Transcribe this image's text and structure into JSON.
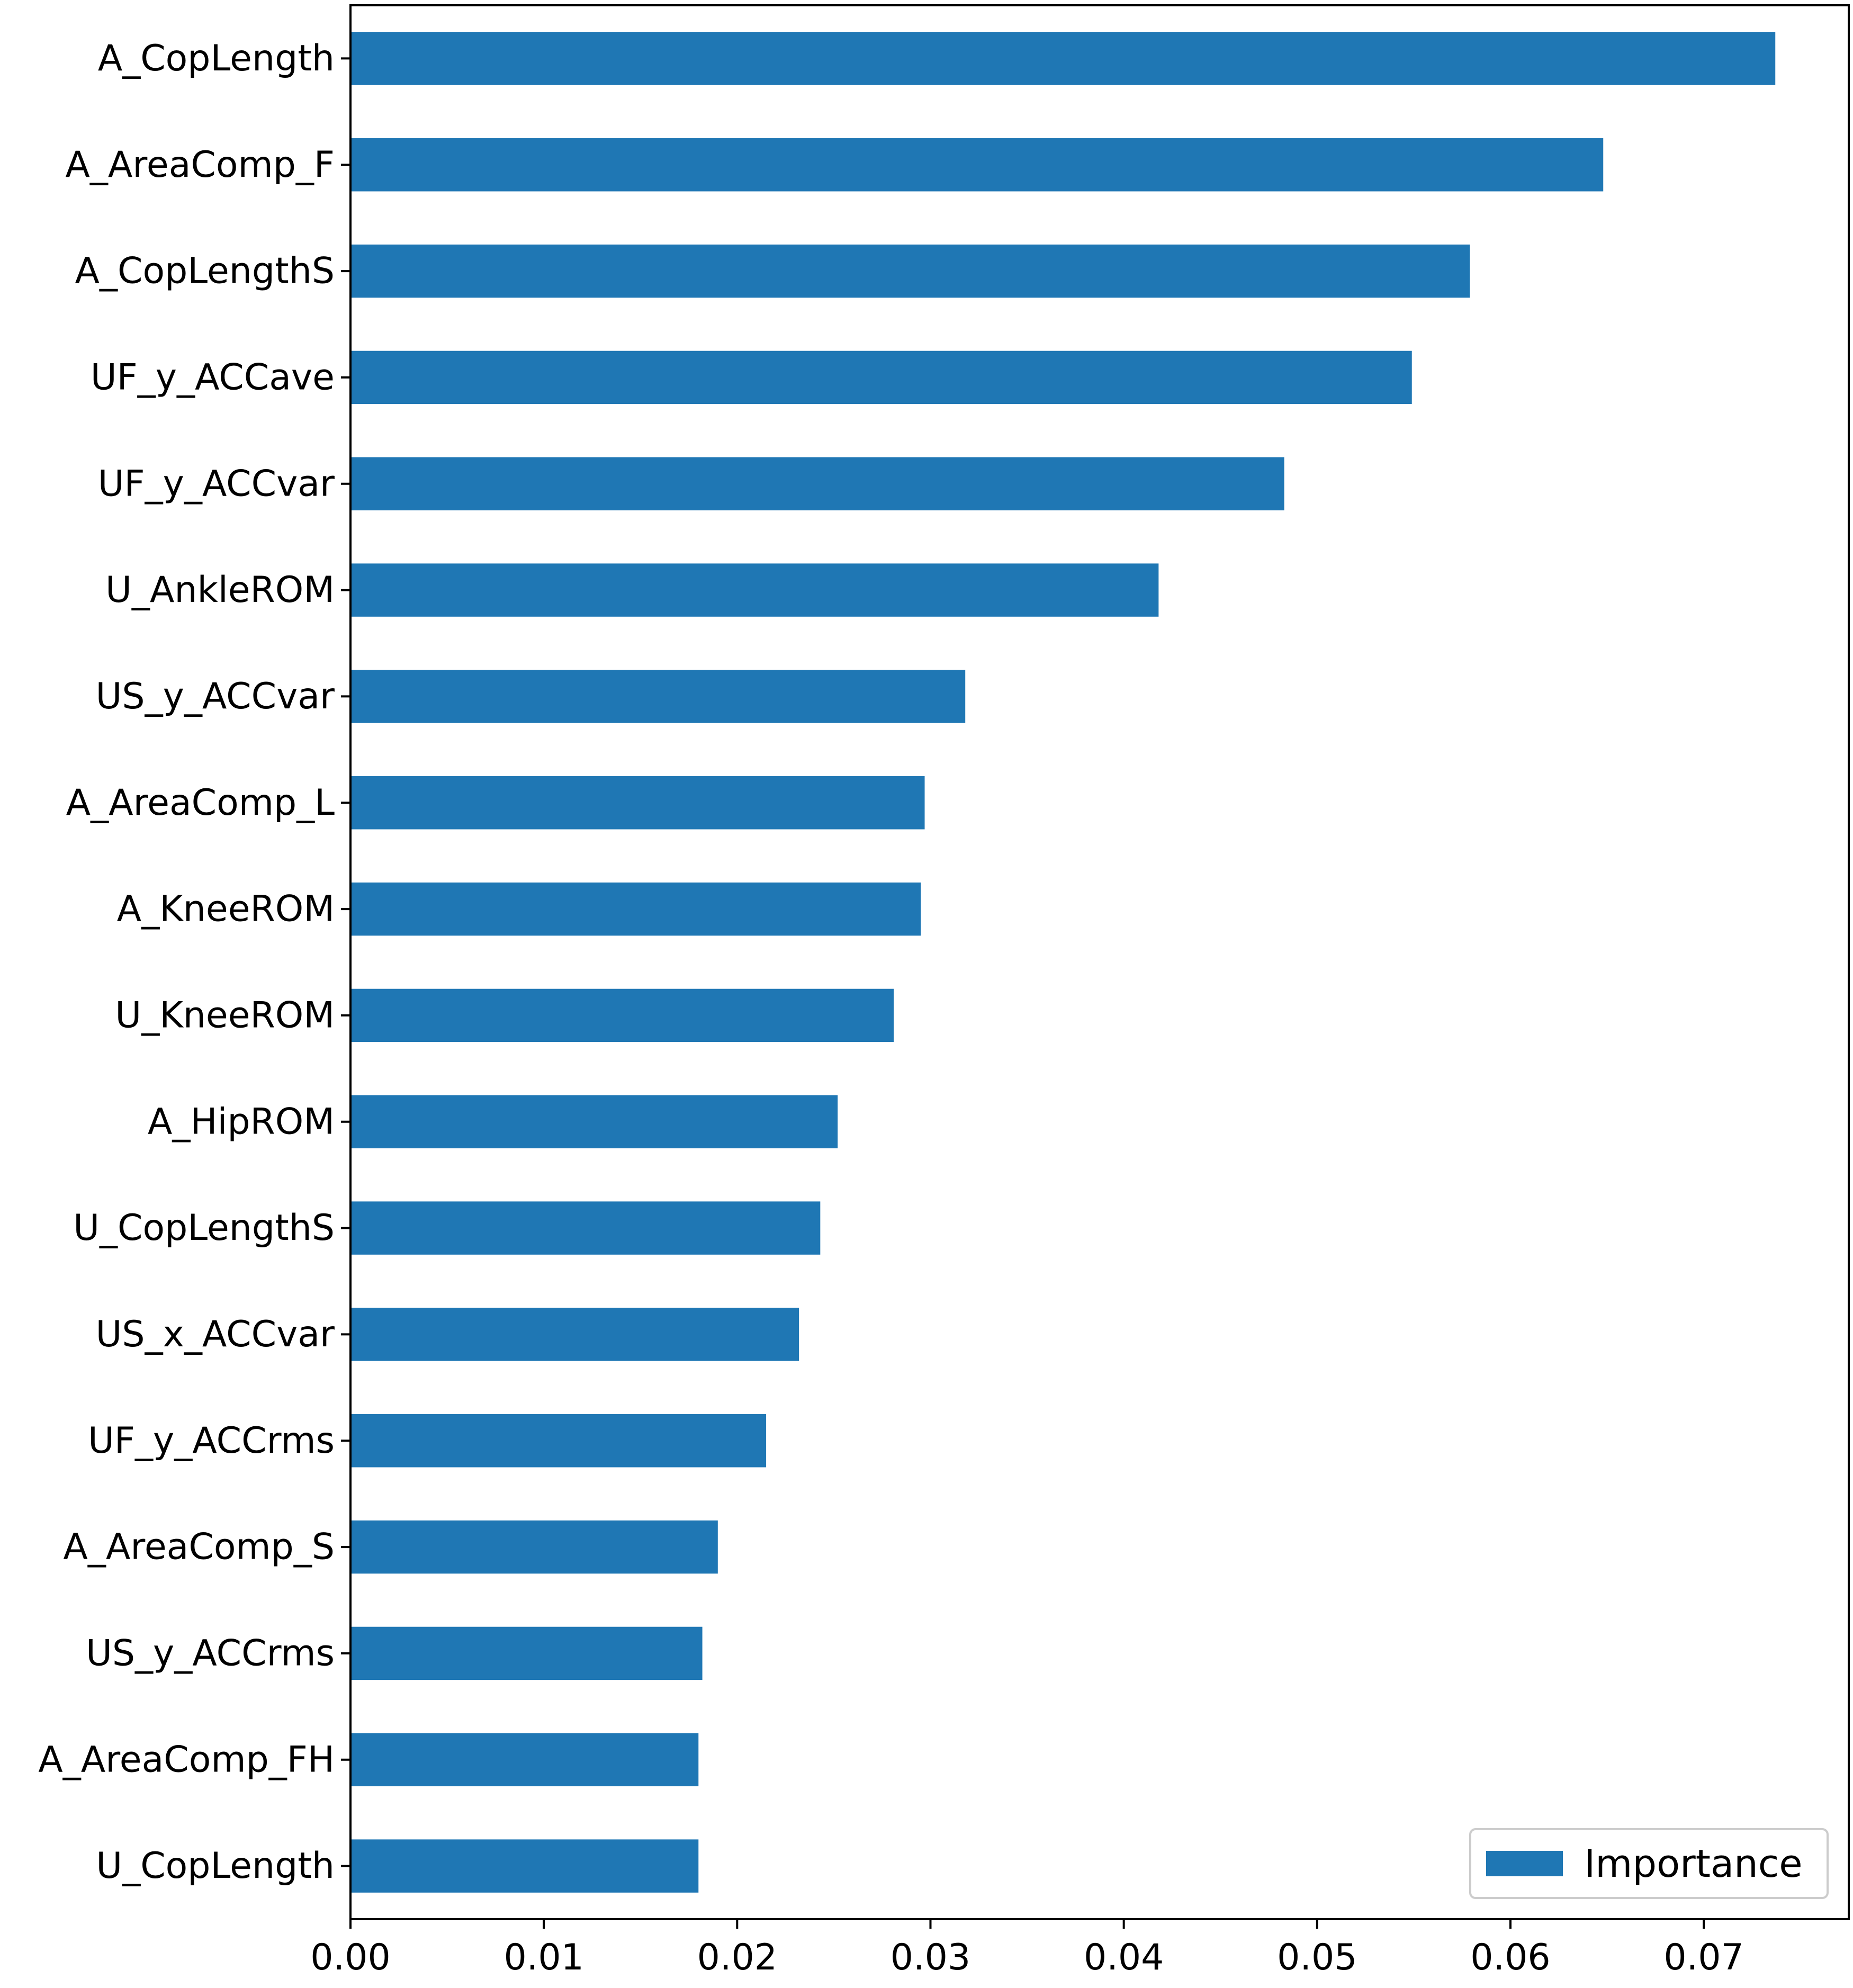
{
  "chart_data": {
    "type": "bar",
    "orientation": "horizontal",
    "title": "",
    "xlabel": "",
    "ylabel": "",
    "categories": [
      "A_CopLength",
      "A_AreaComp_F",
      "A_CopLengthS",
      "UF_y_ACCave",
      "UF_y_ACCvar",
      "U_AnkleROM",
      "US_y_ACCvar",
      "A_AreaComp_L",
      "A_KneeROM",
      "U_KneeROM",
      "A_HipROM",
      "U_CopLengthS",
      "US_x_ACCvar",
      "UF_y_ACCrms",
      "A_AreaComp_S",
      "US_y_ACCrms",
      "A_AreaComp_FH",
      "U_CopLength"
    ],
    "series": [
      {
        "name": "Importance",
        "color": "#1f77b4",
        "values": [
          0.0737,
          0.0648,
          0.0579,
          0.0549,
          0.0483,
          0.0418,
          0.0318,
          0.0297,
          0.0295,
          0.0281,
          0.0252,
          0.0243,
          0.0232,
          0.0215,
          0.019,
          0.0182,
          0.018,
          0.018
        ]
      }
    ],
    "xlim": [
      0,
      0.0775
    ],
    "xticks": [
      0.0,
      0.01,
      0.02,
      0.03,
      0.04,
      0.05,
      0.06,
      0.07
    ],
    "xtick_labels": [
      "0.00",
      "0.01",
      "0.02",
      "0.03",
      "0.04",
      "0.05",
      "0.06",
      "0.07"
    ],
    "grid": false,
    "legend": {
      "position": "lower-right",
      "entries": [
        "Importance"
      ]
    }
  }
}
